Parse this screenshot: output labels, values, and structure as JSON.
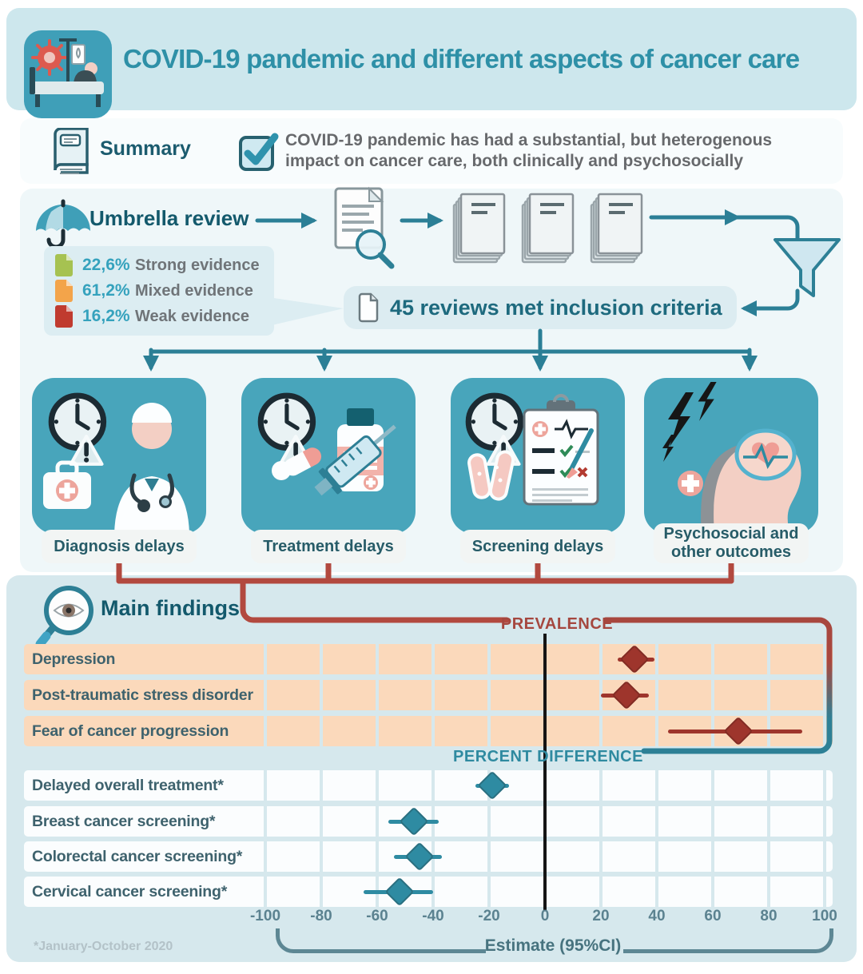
{
  "header": {
    "title": "COVID-19 pandemic and different aspects of cancer care"
  },
  "summary": {
    "label": "Summary",
    "line1": "COVID-19 pandemic has had a substantial, but heterogenous",
    "line2": "impact on cancer care, both clinically and psychosocially"
  },
  "review": {
    "title": "Umbrella review",
    "legend": [
      {
        "pct": "22,6%",
        "label": "Strong evidence",
        "color": "#a6c251"
      },
      {
        "pct": "61,2%",
        "label": "Mixed evidence",
        "color": "#f3a44a"
      },
      {
        "pct": "16,2%",
        "label": "Weak evidence",
        "color": "#c03b2f"
      }
    ],
    "inclusion_text": "45 reviews met inclusion criteria",
    "categories": [
      {
        "label": "Diagnosis delays",
        "icon": "doctor-clock-icon"
      },
      {
        "label": "Treatment delays",
        "icon": "medication-syringe-clock-icon"
      },
      {
        "label": "Screening delays",
        "icon": "checklist-testtubes-clock-icon"
      },
      {
        "label": "Psychosocial and other outcomes",
        "icon": "head-brain-stress-icon"
      }
    ]
  },
  "findings": {
    "title": "Main findings",
    "axis_label": "Estimate (95%CI)",
    "footnote": "*January-October 2020"
  },
  "chart_data": {
    "type": "forest",
    "xlabel": "Estimate (95%CI)",
    "xlim": [
      -100,
      100
    ],
    "ticks": [
      -100,
      -80,
      -60,
      -40,
      -20,
      0,
      20,
      40,
      60,
      80,
      100
    ],
    "zero_line": true,
    "grid": "vertical every 20",
    "groups": [
      {
        "name": "PREVALENCE",
        "color": "#9e352c",
        "band": "#fbd9bb",
        "label_color": "#a5473f",
        "rows": [
          {
            "label": "Depression",
            "estimate": 32,
            "ci": [
              26,
              39
            ]
          },
          {
            "label": "Post-traumatic stress disorder",
            "estimate": 29,
            "ci": [
              20,
              37
            ]
          },
          {
            "label": "Fear of cancer progression",
            "estimate": 69,
            "ci": [
              44,
              92
            ]
          }
        ]
      },
      {
        "name": "PERCENT DIFFERENCE",
        "color": "#2e8ba2",
        "band": "#fbfdfe",
        "label_color": "#2f8aa0",
        "rows": [
          {
            "label": "Delayed overall treatment*",
            "estimate": -19,
            "ci": [
              -25,
              -13
            ]
          },
          {
            "label": "Breast cancer screening*",
            "estimate": -47,
            "ci": [
              -56,
              -38
            ]
          },
          {
            "label": "Colorectal cancer screening*",
            "estimate": -45,
            "ci": [
              -54,
              -37
            ]
          },
          {
            "label": "Cervical cancer screening*",
            "estimate": -52,
            "ci": [
              -65,
              -40
            ]
          }
        ]
      }
    ]
  },
  "colors": {
    "accent_teal": "#3f9fb8",
    "dark_teal": "#14596c",
    "maroon": "#b2493f",
    "header_blue": "#cde7ed",
    "panel_blue": "#eff7f9",
    "section_blue": "#d6e8ed",
    "peach": "#fbd9bb"
  }
}
